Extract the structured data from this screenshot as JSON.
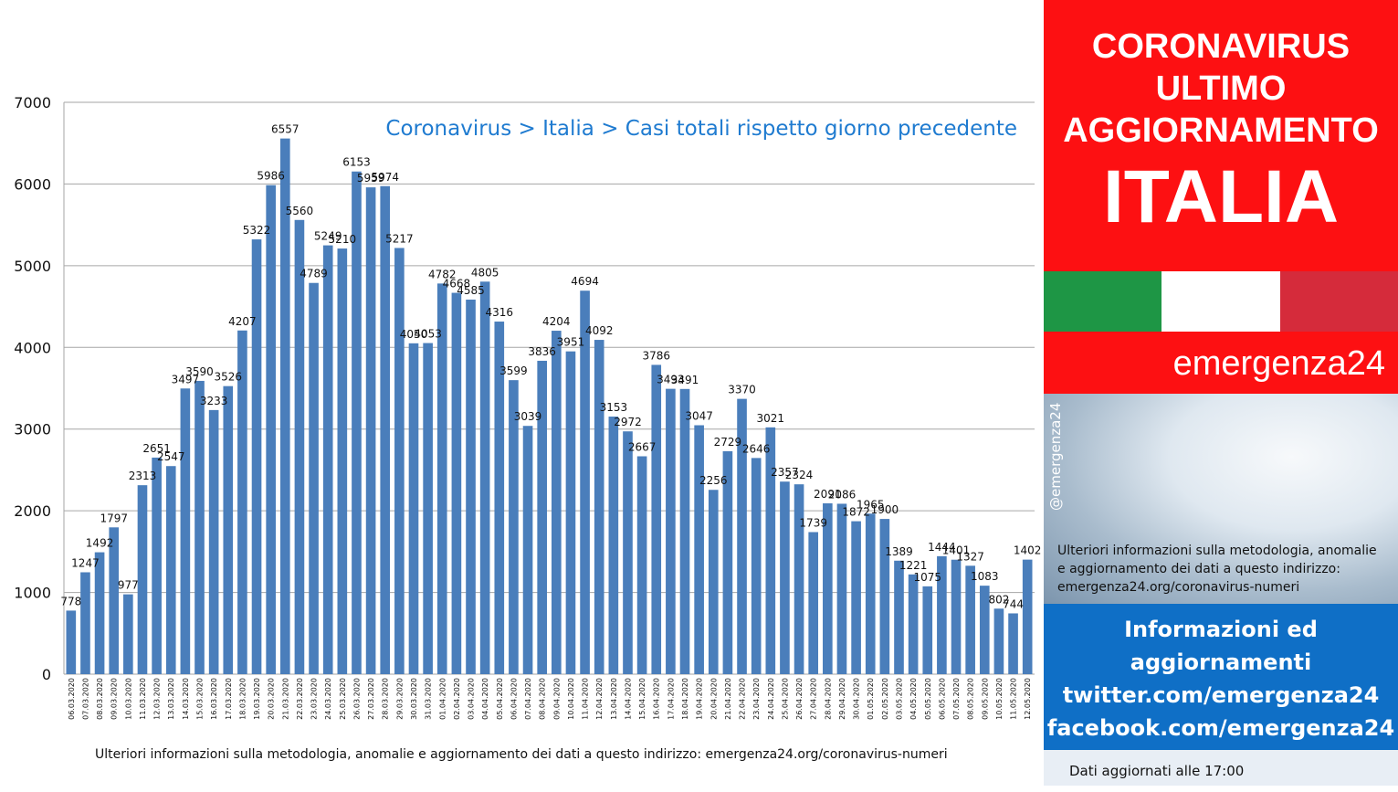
{
  "chart_data": {
    "type": "bar",
    "title": "Coronavirus > Italia > Casi totali rispetto giorno precedente",
    "xlabel": "",
    "ylabel": "",
    "ylim": [
      0,
      7000
    ],
    "yticks": [
      0,
      1000,
      2000,
      3000,
      4000,
      5000,
      6000,
      7000
    ],
    "grid": true,
    "bar_color": "#4a7ebb",
    "categories": [
      "06.03.2020",
      "07.03.2020",
      "08.03.2020",
      "09.03.2020",
      "10.03.2020",
      "11.03.2020",
      "12.03.2020",
      "13.03.2020",
      "14.03.2020",
      "15.03.2020",
      "16.03.2020",
      "17.03.2020",
      "18.03.2020",
      "19.03.2020",
      "20.03.2020",
      "21.03.2020",
      "22.03.2020",
      "23.03.2020",
      "24.03.2020",
      "25.03.2020",
      "26.03.2020",
      "27.03.2020",
      "28.03.2020",
      "29.03.2020",
      "30.03.2020",
      "31.03.2020",
      "01.04.2020",
      "02.04.2020",
      "03.04.2020",
      "04.04.2020",
      "05.04.2020",
      "06.04.2020",
      "07.04.2020",
      "08.04.2020",
      "09.04.2020",
      "10.04.2020",
      "11.04.2020",
      "12.04.2020",
      "13.04.2020",
      "14.04.2020",
      "15.04.2020",
      "16.04.2020",
      "17.04.2020",
      "18.04.2020",
      "19.04.2020",
      "20.04.2020",
      "21.04.2020",
      "22.04.2020",
      "23.04.2020",
      "24.04.2020",
      "25.04.2020",
      "26.04.2020",
      "27.04.2020",
      "28.04.2020",
      "29.04.2020",
      "30.04.2020",
      "01.05.2020",
      "02.05.2020",
      "03.05.2020",
      "04.05.2020",
      "05.05.2020",
      "06.05.2020",
      "07.05.2020",
      "08.05.2020",
      "09.05.2020",
      "10.05.2020",
      "11.05.2020",
      "12.05.2020"
    ],
    "values": [
      778,
      1247,
      1492,
      1797,
      977,
      2313,
      2651,
      2547,
      3497,
      3590,
      3233,
      3526,
      4207,
      5322,
      5986,
      6557,
      5560,
      4789,
      5249,
      5210,
      6153,
      5959,
      5974,
      5217,
      4050,
      4053,
      4782,
      4668,
      4585,
      4805,
      4316,
      3599,
      3039,
      3836,
      4204,
      3951,
      4694,
      4092,
      3153,
      2972,
      2667,
      3786,
      3493,
      3491,
      3047,
      2256,
      2729,
      3370,
      2646,
      3021,
      2357,
      2324,
      1739,
      2091,
      2086,
      1872,
      1965,
      1900,
      1389,
      1221,
      1075,
      1444,
      1401,
      1327,
      1083,
      802,
      744,
      1402
    ]
  },
  "footnote": "Ulteriori informazioni sulla metodologia, anomalie e aggiornamento dei dati a questo indirizzo: emergenza24.org/coronavirus-numeri",
  "panel": {
    "headline_1": "CORONAVIRUS",
    "headline_2": "ULTIMO",
    "headline_3": "AGGIORNAMENTO",
    "headline_big": "ITALIA",
    "flag_colors": [
      "#1e9645",
      "#ffffff",
      "#d52b3b"
    ],
    "brand": "emergenza24",
    "handle": "@emergenza24",
    "info_line_1": "Ulteriori informazioni sulla metodologia, anomalie",
    "info_line_2": "e aggiornamento dei dati a questo indirizzo:",
    "info_line_3": "emergenza24.org/coronavirus-numeri",
    "social_1": "Informazioni ed",
    "social_2": "aggiornamenti",
    "social_3": "twitter.com/emergenza24",
    "social_4": "facebook.com/emergenza24",
    "updated": "Dati aggiornati alle 17:00",
    "accent_red": "#fd1012",
    "accent_blue": "#0f6fc6"
  }
}
